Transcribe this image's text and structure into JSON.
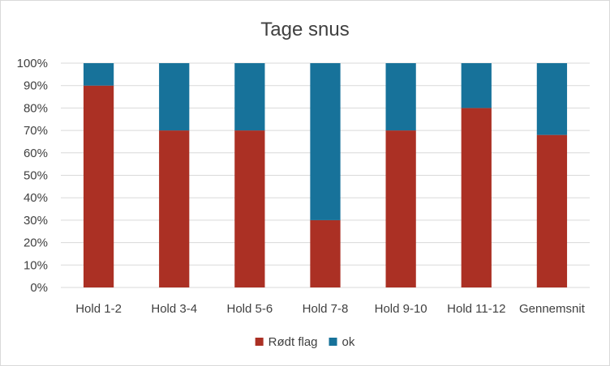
{
  "chart_data": {
    "type": "bar",
    "stacked": true,
    "percent_stacked": true,
    "title": "Tage snus",
    "xlabel": "",
    "ylabel": "",
    "categories": [
      "Hold 1-2",
      "Hold 3-4",
      "Hold 5-6",
      "Hold 7-8",
      "Hold 9-10",
      "Hold 11-12",
      "Gennemsnit"
    ],
    "series": [
      {
        "name": "Rødt flag",
        "color": "#ab3024",
        "values": [
          90,
          70,
          70,
          30,
          70,
          80,
          68
        ]
      },
      {
        "name": "ok",
        "color": "#17729a",
        "values": [
          10,
          30,
          30,
          70,
          30,
          20,
          32
        ]
      }
    ],
    "ylim": [
      0,
      100
    ],
    "yticks": [
      "0%",
      "10%",
      "20%",
      "30%",
      "40%",
      "50%",
      "60%",
      "70%",
      "80%",
      "90%",
      "100%"
    ],
    "grid": true,
    "gridColor": "#d9d9d9",
    "legend": "bottom"
  }
}
